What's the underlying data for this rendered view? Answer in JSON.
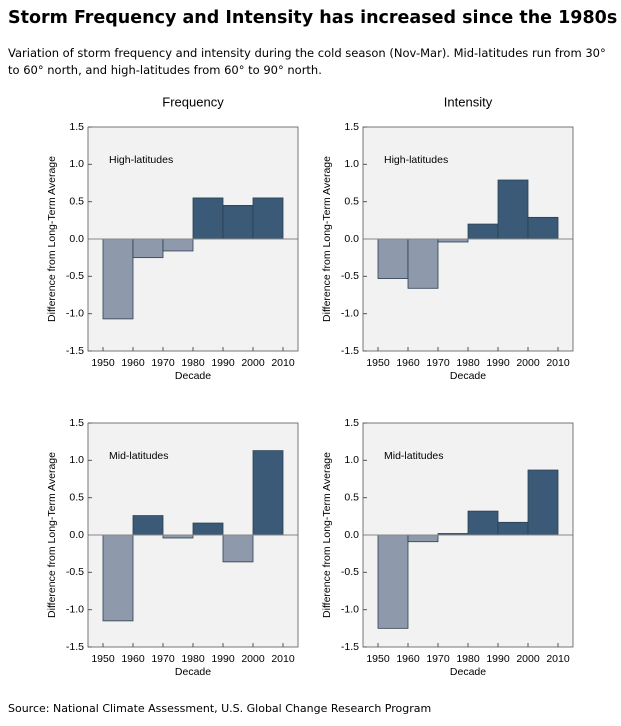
{
  "title": "Storm Frequency and Intensity has increased since the 1980s",
  "subtitle": "Variation of storm frequency and intensity during the cold season (Nov-Mar). Mid-latitudes run from 30° to 60° north, and high-latitudes from 60° to 90° north.",
  "source": "Source: National Climate Assessment, U.S. Global Change Research Program",
  "chart_data": [
    {
      "type": "histogram",
      "title": "Frequency",
      "annotation": "High-latitudes",
      "xlabel": "Decade",
      "ylabel": "Difference from Long-Term Average",
      "bins": [
        1950,
        1960,
        1970,
        1980,
        1990,
        2000,
        2010
      ],
      "values": [
        -1.07,
        -0.25,
        -0.16,
        0.55,
        0.45,
        0.55
      ],
      "positive_color": "#3a5a78",
      "negative_color": "#8e9aac",
      "xlim": [
        1945,
        2015
      ],
      "xticks": [
        1950,
        1960,
        1970,
        1980,
        1990,
        2000,
        2010
      ],
      "ylim": [
        -1.5,
        1.5
      ],
      "yticks": [
        1.5,
        {
          "value": 1,
          "label": "1.0"
        },
        0.5,
        {
          "value": 0,
          "label": "0.0"
        },
        -0.5,
        {
          "value": -1,
          "label": "-1.0"
        },
        -1.5
      ]
    },
    {
      "type": "histogram",
      "title": "Intensity",
      "annotation": "High-latitudes",
      "xlabel": "Decade",
      "ylabel": "Difference from Long-Term Average",
      "bins": [
        1950,
        1960,
        1970,
        1980,
        1990,
        2000,
        2010
      ],
      "values": [
        -0.53,
        -0.66,
        -0.04,
        0.2,
        0.79,
        0.29
      ],
      "positive_color": "#3a5a78",
      "negative_color": "#8e9aac",
      "xlim": [
        1945,
        2015
      ],
      "xticks": [
        1950,
        1960,
        1970,
        1980,
        1990,
        2000,
        2010
      ],
      "ylim": [
        -1.5,
        1.5
      ],
      "yticks": [
        1.5,
        {
          "value": 1,
          "label": "1.0"
        },
        0.5,
        {
          "value": 0,
          "label": "0.0"
        },
        -0.5,
        {
          "value": -1,
          "label": "-1.0"
        },
        -1.5
      ]
    },
    {
      "type": "histogram",
      "annotation": "Mid-latitudes",
      "xlabel": "Decade",
      "ylabel": "Difference from Long-Term Average",
      "bins": [
        1950,
        1960,
        1970,
        1980,
        1990,
        2000,
        2010
      ],
      "values": [
        -1.15,
        0.26,
        -0.04,
        0.16,
        -0.36,
        1.13
      ],
      "positive_color": "#3a5a78",
      "negative_color": "#8e9aac",
      "xlim": [
        1945,
        2015
      ],
      "xticks": [
        1950,
        1960,
        1970,
        1980,
        1990,
        2000,
        2010
      ],
      "ylim": [
        -1.5,
        1.5
      ],
      "yticks": [
        1.5,
        {
          "value": 1,
          "label": "1.0"
        },
        0.5,
        {
          "value": 0,
          "label": "0.0"
        },
        -0.5,
        {
          "value": -1,
          "label": "-1.0"
        },
        -1.5
      ]
    },
    {
      "type": "histogram",
      "annotation": "Mid-latitudes",
      "xlabel": "Decade",
      "ylabel": "Difference from Long-Term Average",
      "bins": [
        1950,
        1960,
        1970,
        1980,
        1990,
        2000,
        2010
      ],
      "values": [
        -1.25,
        -0.09,
        0.02,
        0.32,
        0.17,
        0.87
      ],
      "positive_color": "#3a5a78",
      "negative_color": "#8e9aac",
      "xlim": [
        1945,
        2015
      ],
      "xticks": [
        1950,
        1960,
        1970,
        1980,
        1990,
        2000,
        2010
      ],
      "ylim": [
        -1.5,
        1.5
      ],
      "yticks": [
        1.5,
        {
          "value": 1,
          "label": "1.0"
        },
        0.5,
        {
          "value": 0,
          "label": "0.0"
        },
        -0.5,
        {
          "value": -1,
          "label": "-1.0"
        },
        -1.5
      ]
    }
  ]
}
